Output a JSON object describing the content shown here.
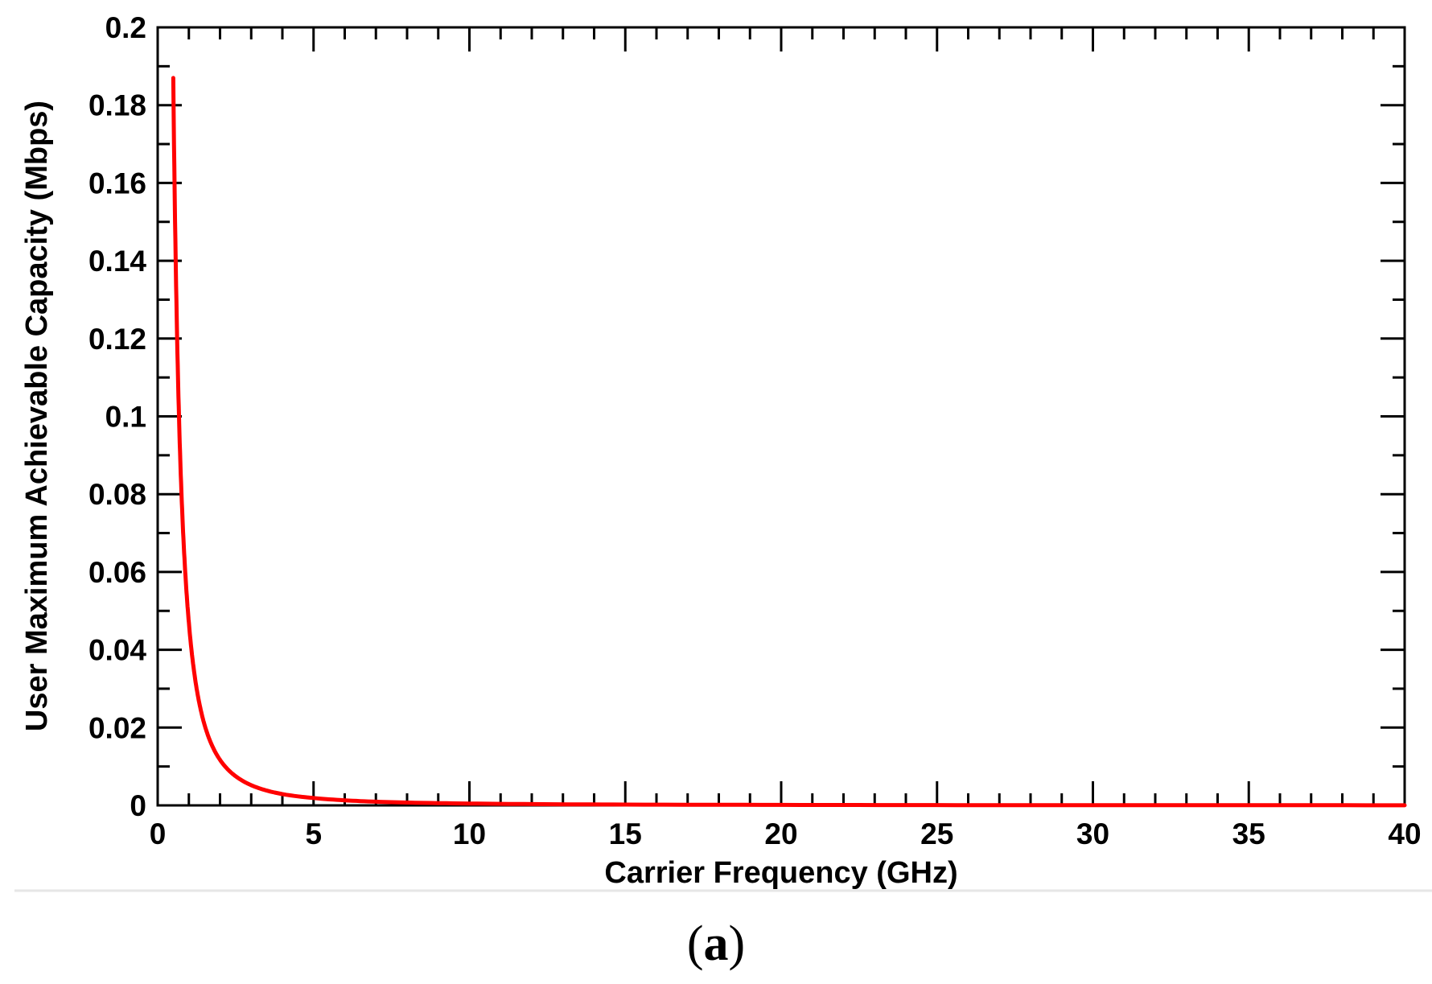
{
  "chart_data": {
    "type": "line",
    "title": "",
    "xlabel": "Carrier Frequency (GHz)",
    "ylabel": "User Maximum Achievable Capacity (Mbps)",
    "xlim": [
      0,
      40
    ],
    "ylim": [
      0,
      0.2
    ],
    "xticks": [
      "0",
      "5",
      "10",
      "15",
      "20",
      "25",
      "30",
      "35",
      "40"
    ],
    "yticks": [
      "0",
      "0.02",
      "0.04",
      "0.06",
      "0.08",
      "0.1",
      "0.12",
      "0.14",
      "0.16",
      "0.18",
      "0.2"
    ],
    "grid": false,
    "series": [
      {
        "color": "#ff0000",
        "x": [
          0.5,
          0.75,
          1,
          1.5,
          2,
          2.5,
          3,
          4,
          5,
          6,
          7,
          8,
          10,
          12,
          15,
          20,
          25,
          30,
          35,
          40
        ],
        "y": [
          0.187,
          0.083,
          0.047,
          0.0208,
          0.0117,
          0.0075,
          0.0052,
          0.0029,
          0.0019,
          0.0013,
          0.00095,
          0.00073,
          0.00047,
          0.00033,
          0.00021,
          0.00012,
          7.5e-05,
          5.2e-05,
          3.8e-05,
          2.9e-05
        ]
      }
    ]
  },
  "caption": {
    "open": "(",
    "letter": "a",
    "close": ")"
  }
}
